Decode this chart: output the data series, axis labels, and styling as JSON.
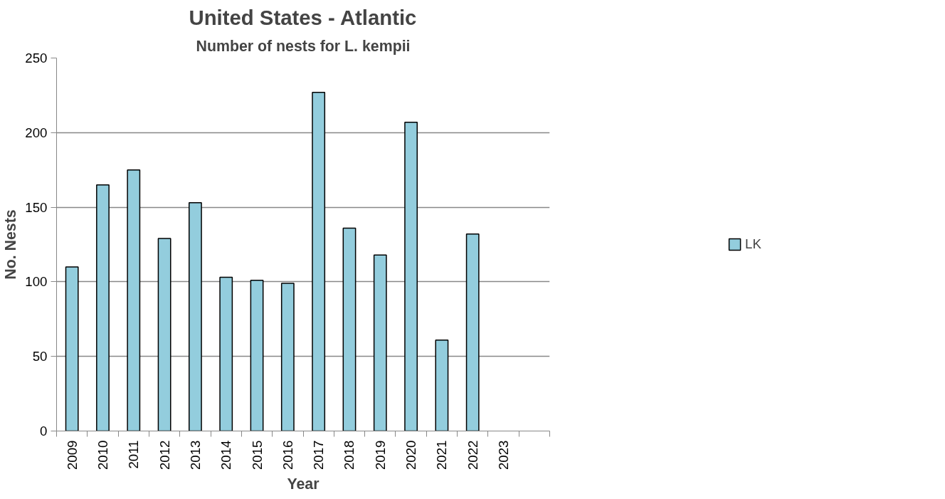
{
  "chart_data": {
    "type": "bar",
    "title": "United States - Atlantic",
    "subtitle": "Number of nests for L. kempii",
    "xlabel": "Year",
    "ylabel": "No. Nests",
    "categories": [
      "2009",
      "2010",
      "2011",
      "2012",
      "2013",
      "2014",
      "2015",
      "2016",
      "2017",
      "2018",
      "2019",
      "2020",
      "2021",
      "2022",
      "2023",
      null
    ],
    "series": [
      {
        "name": "LK",
        "color": "#93cddd",
        "values": [
          110,
          165,
          175,
          129,
          153,
          103,
          101,
          99,
          227,
          136,
          118,
          207,
          61,
          132,
          null,
          null
        ]
      }
    ],
    "ylim": [
      0,
      250
    ],
    "yticks": [
      0,
      50,
      100,
      150,
      200,
      250
    ],
    "grid": "y",
    "legend": "right"
  }
}
